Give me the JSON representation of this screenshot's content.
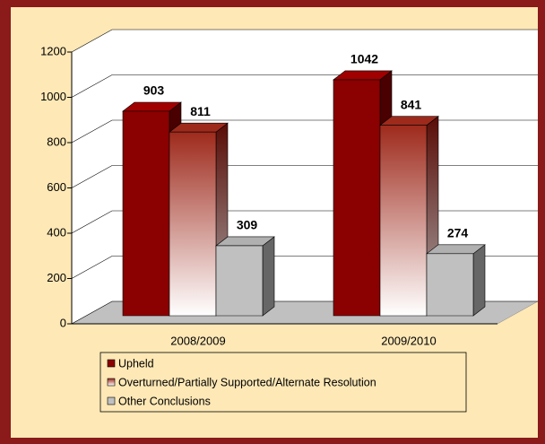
{
  "chart_data": {
    "type": "bar3d",
    "categories": [
      "2008/2009",
      "2009/2010"
    ],
    "series": [
      {
        "name": "Upheld",
        "color": "#8b0000",
        "values": [
          903,
          1042
        ]
      },
      {
        "name": "Overturned/Partially Supported/Alternate Resolution",
        "color": "#9e2a1c",
        "values": [
          811,
          841
        ]
      },
      {
        "name": "Other Conclusions",
        "color": "#c0c0c0",
        "values": [
          309,
          274
        ]
      }
    ],
    "ylim": [
      0,
      1200
    ],
    "yticks": [
      0,
      200,
      400,
      600,
      800,
      1000,
      1200
    ],
    "grid": true,
    "legend": "bottom"
  }
}
